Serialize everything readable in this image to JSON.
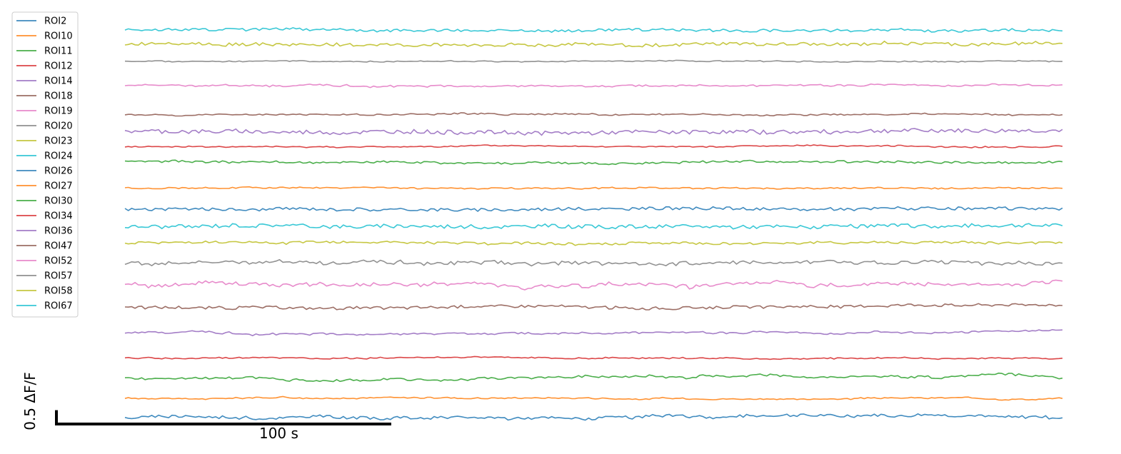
{
  "chart_data": {
    "type": "line",
    "title": "",
    "xlabel": "",
    "ylabel": "",
    "grid": false,
    "axes_visible": false,
    "legend": {
      "placement": "top-left"
    },
    "scale_bar": {
      "x_length": 100,
      "x_label": "100 s",
      "y_length": 0.5,
      "y_label": "0.5 ΔF/F"
    },
    "xlim": [
      0,
      280
    ],
    "n_points": 280,
    "series": [
      {
        "name": "ROI2",
        "color": "#1f77b4",
        "offset": 0.02,
        "noise": 0.02,
        "drift": 0.02,
        "seed": 2
      },
      {
        "name": "ROI10",
        "color": "#ff7f0e",
        "offset": 0.3,
        "noise": 0.008,
        "drift": 0.01,
        "seed": 10
      },
      {
        "name": "ROI11",
        "color": "#2ca02c",
        "offset": 0.58,
        "noise": 0.015,
        "drift": 0.02,
        "seed": 11
      },
      {
        "name": "ROI12",
        "color": "#d62728",
        "offset": 0.88,
        "noise": 0.008,
        "drift": 0.01,
        "seed": 12
      },
      {
        "name": "ROI14",
        "color": "#9467bd",
        "offset": 1.25,
        "noise": 0.012,
        "drift": 0.015,
        "seed": 14
      },
      {
        "name": "ROI18",
        "color": "#8c564b",
        "offset": 1.62,
        "noise": 0.02,
        "drift": 0.01,
        "seed": 18
      },
      {
        "name": "ROI19",
        "color": "#e377c2",
        "offset": 1.96,
        "noise": 0.025,
        "drift": 0.025,
        "seed": 19
      },
      {
        "name": "ROI20",
        "color": "#7f7f7f",
        "offset": 2.26,
        "noise": 0.025,
        "drift": 0.015,
        "seed": 20
      },
      {
        "name": "ROI23",
        "color": "#bcbd22",
        "offset": 2.54,
        "noise": 0.018,
        "drift": 0.01,
        "seed": 23
      },
      {
        "name": "ROI24",
        "color": "#17becf",
        "offset": 2.78,
        "noise": 0.028,
        "drift": 0.01,
        "seed": 24
      },
      {
        "name": "ROI26",
        "color": "#1f77b4",
        "offset": 3.03,
        "noise": 0.022,
        "drift": 0.01,
        "seed": 26
      },
      {
        "name": "ROI27",
        "color": "#ff7f0e",
        "offset": 3.34,
        "noise": 0.01,
        "drift": 0.005,
        "seed": 27
      },
      {
        "name": "ROI30",
        "color": "#2ca02c",
        "offset": 3.71,
        "noise": 0.015,
        "drift": 0.01,
        "seed": 30
      },
      {
        "name": "ROI34",
        "color": "#d62728",
        "offset": 3.93,
        "noise": 0.008,
        "drift": 0.008,
        "seed": 34
      },
      {
        "name": "ROI36",
        "color": "#9467bd",
        "offset": 4.15,
        "noise": 0.03,
        "drift": 0.01,
        "seed": 36
      },
      {
        "name": "ROI47",
        "color": "#8c564b",
        "offset": 4.39,
        "noise": 0.01,
        "drift": 0.008,
        "seed": 47
      },
      {
        "name": "ROI52",
        "color": "#e377c2",
        "offset": 4.82,
        "noise": 0.012,
        "drift": 0.01,
        "seed": 52
      },
      {
        "name": "ROI57",
        "color": "#7f7f7f",
        "offset": 5.17,
        "noise": 0.008,
        "drift": 0.005,
        "seed": 57
      },
      {
        "name": "ROI58",
        "color": "#bcbd22",
        "offset": 5.42,
        "noise": 0.022,
        "drift": 0.015,
        "seed": 58
      },
      {
        "name": "ROI67",
        "color": "#17becf",
        "offset": 5.62,
        "noise": 0.02,
        "drift": 0.008,
        "seed": 67
      }
    ]
  }
}
